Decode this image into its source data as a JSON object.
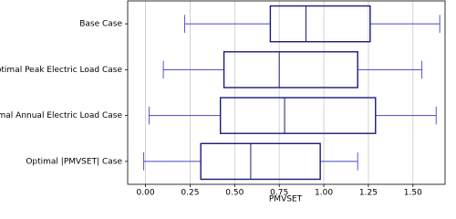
{
  "chart_data": {
    "type": "box",
    "categories": [
      "Base Case",
      "Optimal Peak Electric Load Case",
      "Optimal Annual Electric Load Case",
      "Optimal |PMVSET| Case"
    ],
    "min": [
      0.22,
      0.1,
      0.02,
      -0.01
    ],
    "q1": [
      0.7,
      0.44,
      0.42,
      0.31
    ],
    "median": [
      0.9,
      0.75,
      0.78,
      0.59
    ],
    "q3": [
      1.26,
      1.19,
      1.29,
      0.98
    ],
    "max": [
      1.65,
      1.55,
      1.63,
      1.19
    ],
    "box_color": "#1a1a80",
    "whisker_color": "#4646c8",
    "xlabel": "PMVSET",
    "xlim": [
      -0.1,
      1.68
    ],
    "xticks": [
      {
        "value": 0,
        "label": "0.00"
      },
      {
        "value": 0.25,
        "label": "0.25"
      },
      {
        "value": 0.5,
        "label": "0.50"
      },
      {
        "value": 0.75,
        "label": "0.75"
      },
      {
        "value": 1,
        "label": "1.00"
      },
      {
        "value": 1.25,
        "label": "1.25"
      },
      {
        "value": 1.5,
        "label": "1.50"
      }
    ],
    "grid": true
  }
}
